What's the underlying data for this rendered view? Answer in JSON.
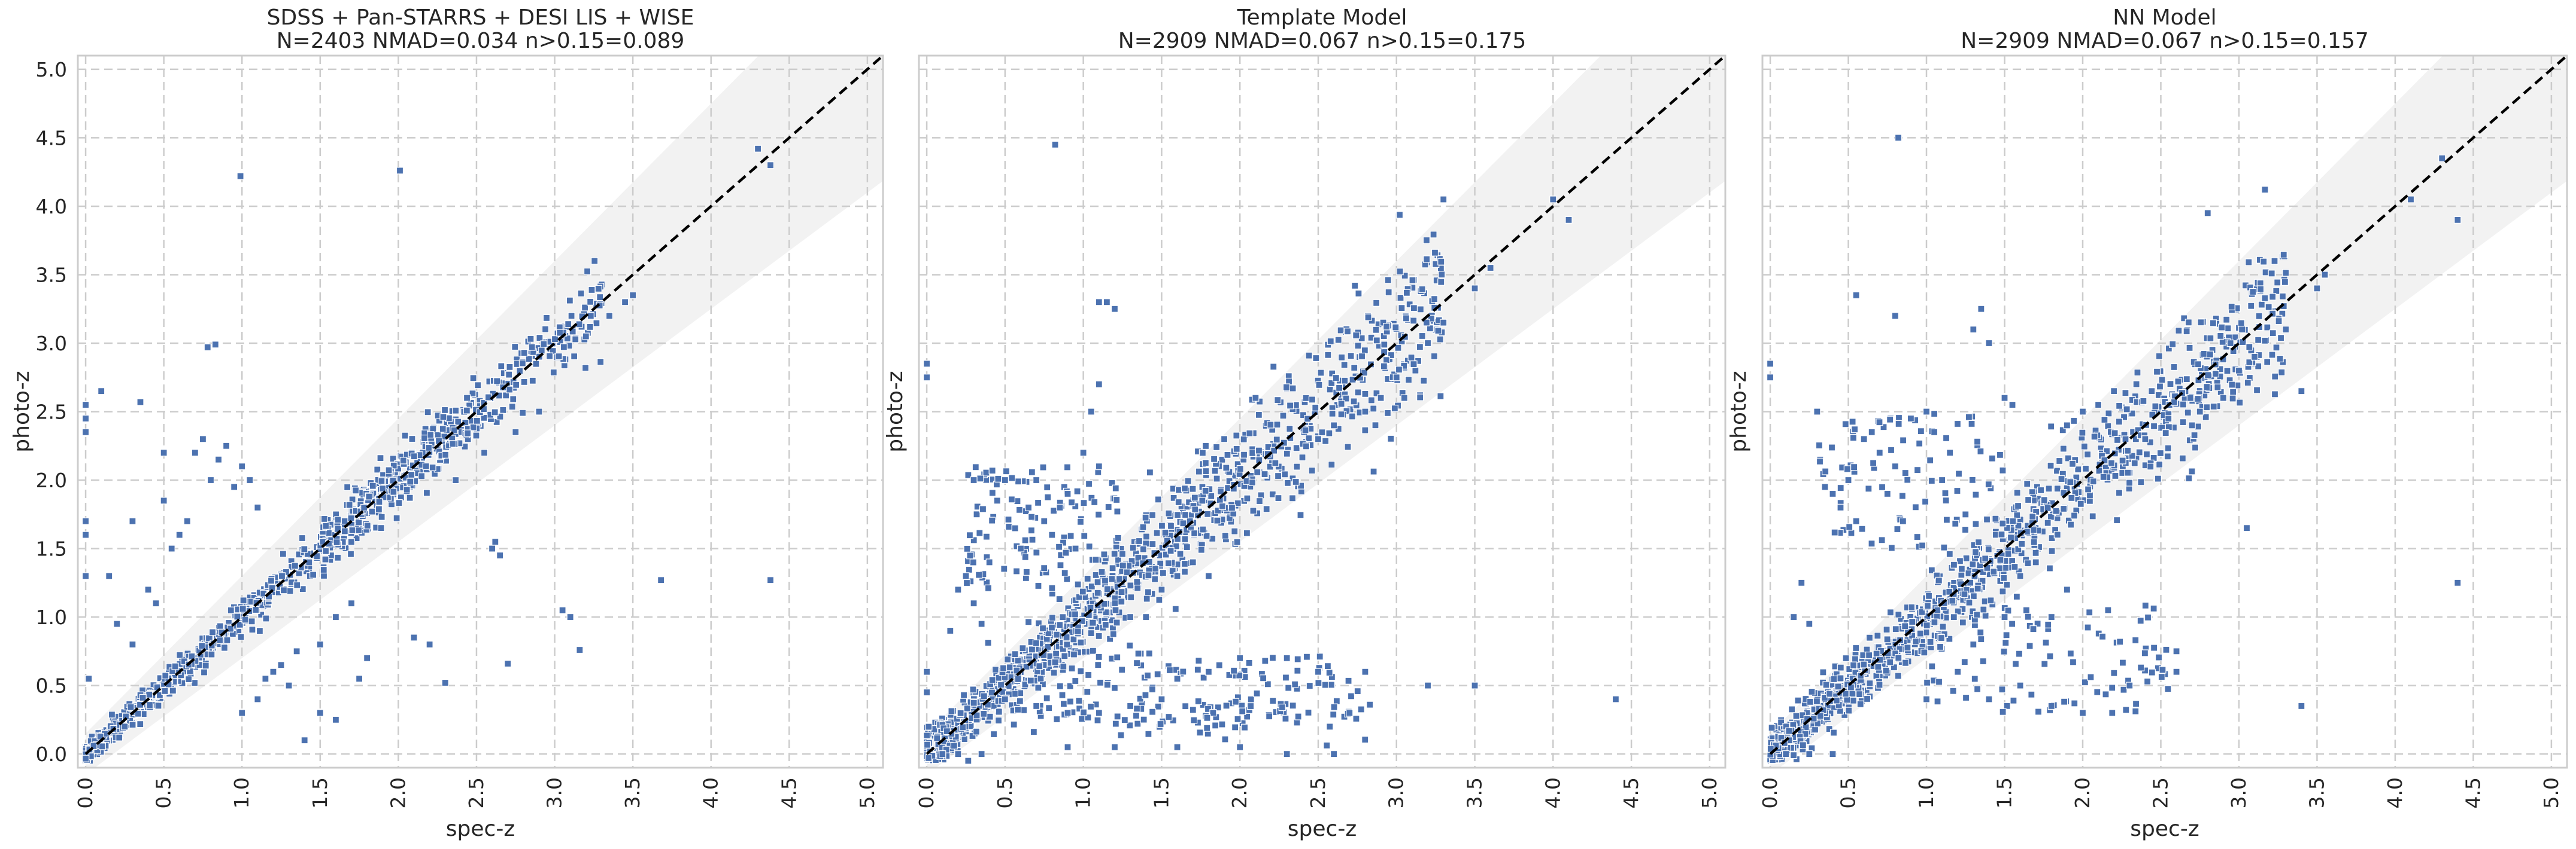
{
  "figure": {
    "colors": {
      "marker": "#4c72b0",
      "band": "#eeeeee",
      "frame": "#cccccc",
      "grid": "#cccccc",
      "diagonal": "#000000"
    }
  },
  "chart_data": [
    {
      "type": "scatter",
      "title": "SDSS + Pan-STARRS + DESI LIS + WISE",
      "subtitle": "N=2403 NMAD=0.034 n>0.15=0.089",
      "xlabel": "spec-z",
      "ylabel": "photo-z",
      "xlim": [
        -0.05,
        5.1
      ],
      "ylim": [
        -0.1,
        5.1
      ],
      "xticks": [
        "0.0",
        "0.5",
        "1.0",
        "1.5",
        "2.0",
        "2.5",
        "3.0",
        "3.5",
        "4.0",
        "4.5",
        "5.0"
      ],
      "yticks": [
        "0.0",
        "0.5",
        "1.0",
        "1.5",
        "2.0",
        "2.5",
        "3.0",
        "3.5",
        "4.0",
        "4.5",
        "5.0"
      ],
      "grid": true,
      "reference_line": "y = x (dashed)",
      "band": "|Δz| < 0.15(1+z)",
      "trend_points": [
        [
          0.05,
          0.05
        ],
        [
          0.3,
          0.3
        ],
        [
          0.6,
          0.6
        ],
        [
          1.0,
          1.0
        ],
        [
          1.3,
          1.3
        ],
        [
          1.7,
          1.7
        ],
        [
          2.0,
          2.0
        ],
        [
          2.3,
          2.3
        ],
        [
          2.6,
          2.6
        ],
        [
          3.0,
          3.0
        ],
        [
          3.3,
          3.3
        ]
      ],
      "points": [
        [
          0.0,
          2.55
        ],
        [
          0.0,
          2.45
        ],
        [
          0.0,
          2.35
        ],
        [
          0.0,
          1.7
        ],
        [
          0.0,
          1.6
        ],
        [
          0.0,
          1.3
        ],
        [
          0.02,
          0.55
        ],
        [
          0.1,
          2.65
        ],
        [
          0.35,
          2.57
        ],
        [
          0.78,
          2.97
        ],
        [
          0.83,
          2.99
        ],
        [
          0.99,
          4.22
        ],
        [
          2.01,
          4.26
        ],
        [
          4.3,
          4.42
        ],
        [
          4.38,
          4.3
        ],
        [
          3.68,
          1.27
        ],
        [
          4.38,
          1.27
        ],
        [
          3.16,
          0.76
        ],
        [
          2.7,
          0.66
        ],
        [
          3.05,
          1.05
        ],
        [
          3.1,
          1.0
        ],
        [
          2.6,
          1.5
        ],
        [
          2.65,
          1.45
        ],
        [
          2.62,
          1.55
        ],
        [
          1.5,
          0.3
        ],
        [
          1.4,
          0.1
        ],
        [
          1.8,
          0.7
        ],
        [
          2.1,
          0.85
        ],
        [
          2.2,
          0.8
        ],
        [
          2.3,
          0.52
        ],
        [
          1.6,
          0.25
        ],
        [
          0.15,
          1.3
        ],
        [
          0.2,
          0.95
        ],
        [
          0.3,
          1.7
        ],
        [
          0.4,
          1.2
        ],
        [
          0.5,
          1.85
        ],
        [
          0.5,
          2.2
        ],
        [
          0.6,
          1.6
        ],
        [
          0.55,
          1.5
        ],
        [
          0.7,
          2.2
        ],
        [
          0.75,
          2.3
        ],
        [
          0.8,
          2.0
        ],
        [
          0.85,
          2.15
        ],
        [
          0.9,
          2.25
        ],
        [
          0.95,
          1.95
        ],
        [
          1.0,
          2.1
        ],
        [
          1.05,
          2.0
        ],
        [
          1.1,
          1.8
        ],
        [
          0.65,
          1.7
        ],
        [
          0.45,
          1.1
        ],
        [
          0.3,
          0.8
        ],
        [
          1.2,
          0.6
        ],
        [
          1.3,
          0.5
        ],
        [
          1.1,
          0.4
        ],
        [
          1.0,
          0.3
        ],
        [
          1.15,
          0.55
        ],
        [
          1.25,
          0.65
        ],
        [
          1.5,
          0.8
        ],
        [
          1.6,
          1.0
        ],
        [
          1.7,
          1.1
        ],
        [
          1.75,
          0.55
        ],
        [
          1.35,
          0.75
        ],
        [
          0.25,
          0.2
        ],
        [
          2.55,
          2.2
        ],
        [
          2.75,
          2.35
        ],
        [
          2.9,
          2.5
        ],
        [
          3.2,
          3.05
        ],
        [
          3.35,
          3.2
        ],
        [
          3.5,
          3.35
        ],
        [
          3.45,
          3.3
        ]
      ]
    },
    {
      "type": "scatter",
      "title": "Template Model",
      "subtitle": "N=2909 NMAD=0.067 n>0.15=0.175",
      "xlabel": "spec-z",
      "ylabel": "photo-z",
      "xlim": [
        -0.05,
        5.1
      ],
      "ylim": [
        -0.1,
        5.1
      ],
      "xticks": [
        "0.0",
        "0.5",
        "1.0",
        "1.5",
        "2.0",
        "2.5",
        "3.0",
        "3.5",
        "4.0",
        "4.5",
        "5.0"
      ],
      "yticks": [],
      "grid": true,
      "reference_line": "y = x (dashed)",
      "band": "|Δz| < 0.15(1+z)",
      "trend_points": [
        [
          0.05,
          0.05
        ],
        [
          0.3,
          0.3
        ],
        [
          0.6,
          0.6
        ],
        [
          1.0,
          1.0
        ],
        [
          1.3,
          1.3
        ],
        [
          1.7,
          1.7
        ],
        [
          2.0,
          2.0
        ],
        [
          2.3,
          2.3
        ],
        [
          2.6,
          2.6
        ],
        [
          3.0,
          3.0
        ],
        [
          3.3,
          3.3
        ]
      ],
      "points": [
        [
          0.0,
          2.85
        ],
        [
          0.0,
          2.75
        ],
        [
          0.0,
          0.6
        ],
        [
          0.0,
          0.45
        ],
        [
          0.82,
          4.45
        ],
        [
          1.1,
          3.3
        ],
        [
          1.15,
          3.3
        ],
        [
          1.2,
          3.25
        ],
        [
          3.3,
          4.05
        ],
        [
          4.0,
          4.05
        ],
        [
          4.1,
          3.9
        ],
        [
          4.4,
          0.4
        ],
        [
          3.5,
          0.5
        ],
        [
          3.2,
          0.5
        ],
        [
          2.8,
          0.6
        ],
        [
          2.5,
          0.6
        ],
        [
          2.3,
          0.7
        ],
        [
          2.0,
          0.7
        ],
        [
          1.8,
          0.6
        ],
        [
          1.6,
          0.55
        ],
        [
          1.5,
          0.4
        ],
        [
          1.3,
          0.35
        ],
        [
          1.1,
          0.3
        ],
        [
          0.9,
          0.3
        ],
        [
          0.7,
          0.35
        ],
        [
          0.5,
          0.4
        ],
        [
          0.9,
          0.05
        ],
        [
          1.2,
          0.05
        ],
        [
          1.6,
          0.05
        ],
        [
          2.0,
          0.05
        ],
        [
          2.3,
          0.0
        ],
        [
          2.7,
          0.3
        ],
        [
          0.3,
          1.1
        ],
        [
          0.4,
          1.4
        ],
        [
          0.45,
          1.85
        ],
        [
          0.5,
          2.0
        ],
        [
          0.6,
          1.5
        ],
        [
          0.65,
          1.8
        ],
        [
          0.7,
          2.0
        ],
        [
          0.75,
          1.7
        ],
        [
          0.8,
          1.6
        ],
        [
          0.85,
          1.8
        ],
        [
          0.9,
          1.9
        ],
        [
          0.95,
          1.5
        ],
        [
          1.0,
          2.2
        ],
        [
          1.05,
          2.5
        ],
        [
          1.1,
          2.7
        ],
        [
          1.1,
          2.1
        ],
        [
          0.3,
          2.0
        ],
        [
          0.25,
          1.3
        ],
        [
          0.2,
          1.2
        ],
        [
          0.15,
          0.9
        ],
        [
          0.35,
          0.95
        ],
        [
          1.9,
          2.3
        ],
        [
          2.1,
          2.6
        ],
        [
          2.5,
          2.3
        ],
        [
          2.6,
          2.4
        ],
        [
          2.8,
          2.5
        ],
        [
          2.9,
          2.6
        ],
        [
          3.0,
          2.75
        ],
        [
          3.05,
          2.6
        ],
        [
          3.2,
          3.0
        ],
        [
          3.3,
          3.15
        ],
        [
          3.5,
          3.4
        ],
        [
          3.6,
          3.55
        ],
        [
          1.6,
          1.3
        ],
        [
          1.7,
          1.4
        ],
        [
          1.8,
          1.3
        ],
        [
          1.4,
          1.0
        ],
        [
          1.3,
          1.0
        ],
        [
          1.5,
          1.2
        ],
        [
          2.6,
          0.0
        ],
        [
          0.1,
          0.0
        ],
        [
          0.2,
          0.0
        ],
        [
          0.35,
          0.0
        ]
      ]
    },
    {
      "type": "scatter",
      "title": "NN Model",
      "subtitle": "N=2909 NMAD=0.067 n>0.15=0.157",
      "xlabel": "spec-z",
      "ylabel": "photo-z",
      "xlim": [
        -0.05,
        5.1
      ],
      "ylim": [
        -0.1,
        5.1
      ],
      "xticks": [
        "0.0",
        "0.5",
        "1.0",
        "1.5",
        "2.0",
        "2.5",
        "3.0",
        "3.5",
        "4.0",
        "4.5",
        "5.0"
      ],
      "yticks": [],
      "grid": true,
      "reference_line": "y = x (dashed)",
      "band": "|Δz| < 0.15(1+z)",
      "trend_points": [
        [
          0.05,
          0.05
        ],
        [
          0.3,
          0.3
        ],
        [
          0.6,
          0.6
        ],
        [
          1.0,
          1.0
        ],
        [
          1.3,
          1.3
        ],
        [
          1.7,
          1.7
        ],
        [
          2.0,
          2.0
        ],
        [
          2.3,
          2.3
        ],
        [
          2.6,
          2.6
        ],
        [
          3.0,
          3.0
        ],
        [
          3.3,
          3.3
        ]
      ],
      "points": [
        [
          0.0,
          2.85
        ],
        [
          0.0,
          2.75
        ],
        [
          0.82,
          4.5
        ],
        [
          2.8,
          3.95
        ],
        [
          4.3,
          4.35
        ],
        [
          4.4,
          3.9
        ],
        [
          4.1,
          4.05
        ],
        [
          4.4,
          1.25
        ],
        [
          3.4,
          0.35
        ],
        [
          3.05,
          1.65
        ],
        [
          2.6,
          0.6
        ],
        [
          2.6,
          0.75
        ],
        [
          2.3,
          0.5
        ],
        [
          2.0,
          0.3
        ],
        [
          1.8,
          0.35
        ],
        [
          1.6,
          0.5
        ],
        [
          1.4,
          0.4
        ],
        [
          1.2,
          0.6
        ],
        [
          1.0,
          0.4
        ],
        [
          0.55,
          3.35
        ],
        [
          0.8,
          3.2
        ],
        [
          1.3,
          3.1
        ],
        [
          1.35,
          3.25
        ],
        [
          1.4,
          3.0
        ],
        [
          0.3,
          2.5
        ],
        [
          0.35,
          1.95
        ],
        [
          0.4,
          1.9
        ],
        [
          0.45,
          1.8
        ],
        [
          0.5,
          2.0
        ],
        [
          0.55,
          1.7
        ],
        [
          0.6,
          2.3
        ],
        [
          0.65,
          2.35
        ],
        [
          0.7,
          2.2
        ],
        [
          0.75,
          1.9
        ],
        [
          0.8,
          2.1
        ],
        [
          0.85,
          1.7
        ],
        [
          0.9,
          2.45
        ],
        [
          1.0,
          2.5
        ],
        [
          1.05,
          2.35
        ],
        [
          1.1,
          2.0
        ],
        [
          1.15,
          2.2
        ],
        [
          1.5,
          2.6
        ],
        [
          1.55,
          2.55
        ],
        [
          1.9,
          2.4
        ],
        [
          2.0,
          2.5
        ],
        [
          2.1,
          2.55
        ],
        [
          2.2,
          2.65
        ],
        [
          2.4,
          2.3
        ],
        [
          2.7,
          2.4
        ],
        [
          2.75,
          2.5
        ],
        [
          2.9,
          2.6
        ],
        [
          3.0,
          2.8
        ],
        [
          3.1,
          2.9
        ],
        [
          3.3,
          3.1
        ],
        [
          3.4,
          2.65
        ],
        [
          3.5,
          3.4
        ],
        [
          3.55,
          3.5
        ],
        [
          1.6,
          1.3
        ],
        [
          1.7,
          1.4
        ],
        [
          1.9,
          1.2
        ],
        [
          1.8,
          1.0
        ],
        [
          1.5,
          1.0
        ],
        [
          1.3,
          0.8
        ],
        [
          0.2,
          1.25
        ],
        [
          0.15,
          1.0
        ],
        [
          0.25,
          0.95
        ],
        [
          0.1,
          0.0
        ],
        [
          0.25,
          0.0
        ],
        [
          0.4,
          0.0
        ]
      ]
    }
  ]
}
